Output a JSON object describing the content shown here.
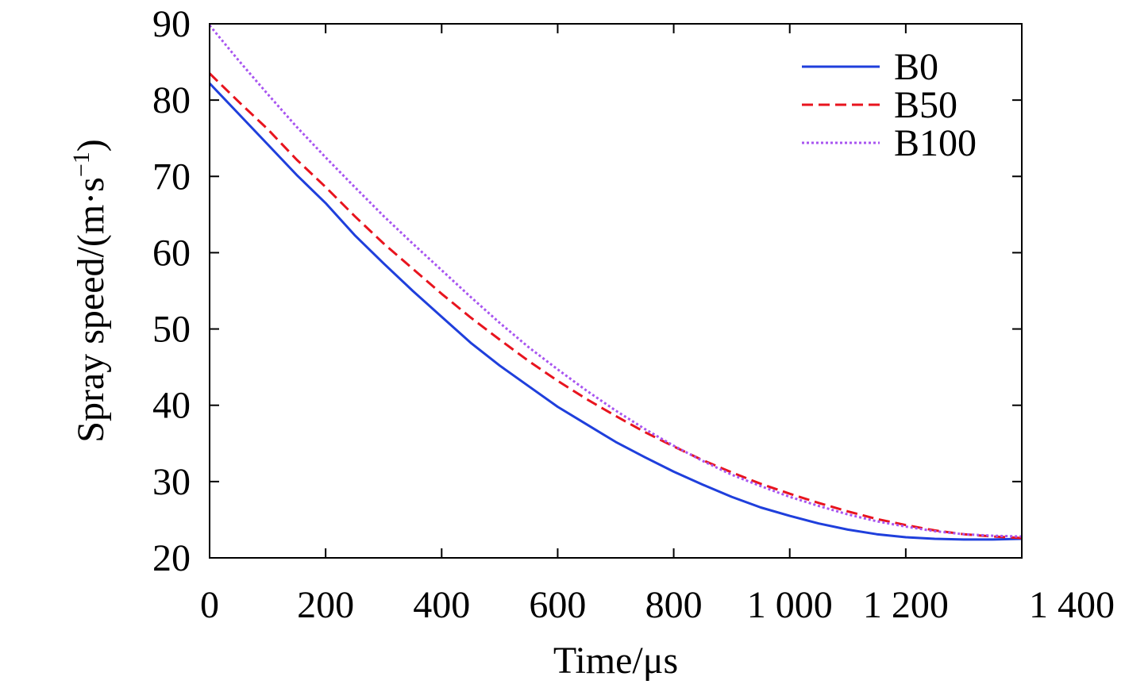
{
  "chart_data": {
    "type": "line",
    "title": "",
    "xlabel": "Time/μs",
    "ylabel": {
      "main": "Spray speed/(m·s",
      "sup": "−1",
      "close": ")"
    },
    "xlim": [
      0,
      1400
    ],
    "ylim": [
      20,
      90
    ],
    "xticks": [
      0,
      200,
      400,
      600,
      800,
      1000,
      1200,
      1400
    ],
    "xtick_labels": [
      "0",
      "200",
      "400",
      "600",
      "800",
      "1 000",
      "1 200",
      "1 400"
    ],
    "yticks": [
      20,
      30,
      40,
      50,
      60,
      70,
      80,
      90
    ],
    "ytick_labels": [
      "20",
      "30",
      "40",
      "50",
      "60",
      "70",
      "80",
      "90"
    ],
    "grid": false,
    "legend_position": "top-right",
    "series": [
      {
        "name": "B0",
        "color": "#1f3fdc",
        "dash": "solid",
        "x": [
          0,
          50,
          100,
          150,
          200,
          250,
          300,
          350,
          400,
          450,
          500,
          550,
          600,
          650,
          700,
          750,
          800,
          850,
          900,
          950,
          1000,
          1050,
          1100,
          1150,
          1200,
          1250,
          1300,
          1350,
          1400
        ],
        "y": [
          82.2,
          78.2,
          74.2,
          70.2,
          66.5,
          62.3,
          58.6,
          55.0,
          51.6,
          48.2,
          45.2,
          42.5,
          39.8,
          37.5,
          35.2,
          33.2,
          31.3,
          29.6,
          28.0,
          26.6,
          25.5,
          24.5,
          23.7,
          23.1,
          22.7,
          22.5,
          22.4,
          22.4,
          22.5
        ]
      },
      {
        "name": "B50",
        "color": "#e8141e",
        "dash": "dashed",
        "x": [
          0,
          50,
          100,
          150,
          200,
          250,
          300,
          350,
          400,
          450,
          500,
          550,
          600,
          650,
          700,
          750,
          800,
          850,
          900,
          950,
          1000,
          1050,
          1100,
          1150,
          1200,
          1250,
          1300,
          1350,
          1400
        ],
        "y": [
          83.5,
          79.8,
          76.2,
          72.2,
          68.6,
          64.8,
          61.2,
          57.9,
          54.6,
          51.5,
          48.6,
          45.8,
          43.2,
          40.8,
          38.6,
          36.5,
          34.6,
          32.8,
          31.2,
          29.7,
          28.4,
          27.2,
          26.1,
          25.1,
          24.3,
          23.6,
          23.1,
          22.8,
          22.6
        ]
      },
      {
        "name": "B100",
        "color": "#a855f0",
        "dash": "dotted",
        "x": [
          0,
          50,
          100,
          150,
          200,
          250,
          300,
          350,
          400,
          450,
          500,
          550,
          600,
          650,
          700,
          750,
          800,
          850,
          900,
          950,
          1000,
          1050,
          1100,
          1150,
          1200,
          1250,
          1300,
          1350,
          1400
        ],
        "y": [
          89.8,
          85.2,
          80.8,
          76.5,
          72.5,
          68.6,
          64.8,
          61.2,
          57.7,
          54.2,
          50.8,
          47.6,
          44.7,
          41.9,
          39.3,
          36.9,
          34.7,
          32.7,
          30.9,
          29.4,
          28.0,
          26.8,
          25.7,
          24.8,
          24.1,
          23.5,
          23.1,
          22.9,
          22.8
        ]
      }
    ]
  }
}
